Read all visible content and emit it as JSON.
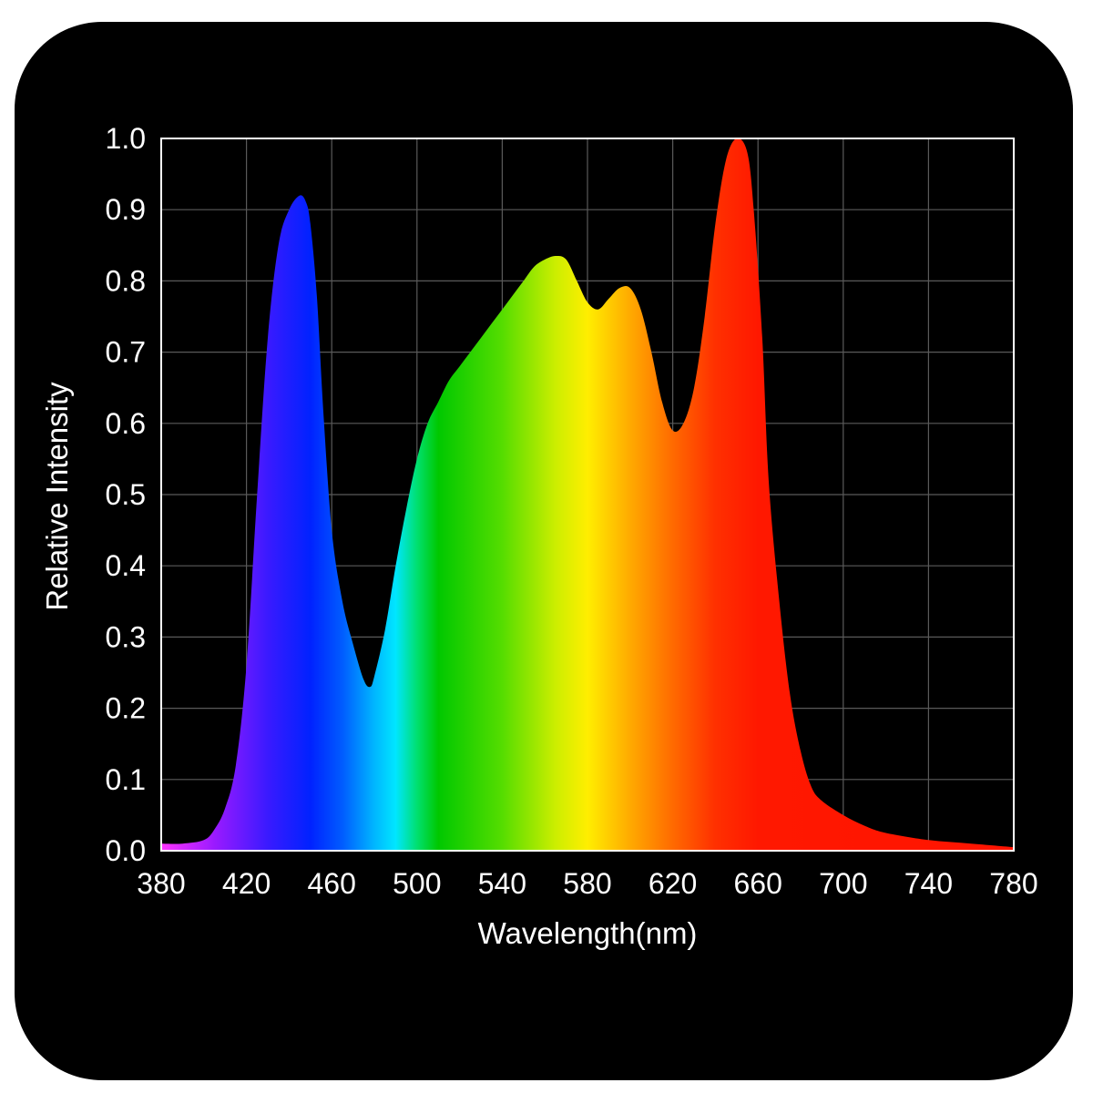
{
  "chart_data": {
    "type": "area",
    "title": "",
    "xlabel": "Wavelength(nm)",
    "ylabel": "Relative Intensity",
    "xlim": [
      380,
      780
    ],
    "ylim": [
      0,
      1.0
    ],
    "x_ticks": [
      "380",
      "420",
      "460",
      "500",
      "540",
      "580",
      "620",
      "660",
      "700",
      "740",
      "780"
    ],
    "y_ticks": [
      "0.0",
      "0.1",
      "0.2",
      "0.3",
      "0.4",
      "0.5",
      "0.6",
      "0.7",
      "0.8",
      "0.9",
      "1.0"
    ],
    "grid": true,
    "legend": "none",
    "fill": "visible spectrum gradient",
    "series": [
      {
        "x": [
          380,
          390,
          400,
          405,
          410,
          415,
          420,
          425,
          430,
          435,
          440,
          445,
          448,
          450,
          453,
          456,
          460,
          465,
          470,
          475,
          478,
          480,
          485,
          490,
          495,
          500,
          505,
          510,
          515,
          520,
          525,
          530,
          535,
          540,
          545,
          550,
          555,
          560,
          565,
          570,
          575,
          580,
          585,
          590,
          595,
          600,
          605,
          610,
          615,
          620,
          625,
          630,
          635,
          640,
          645,
          650,
          655,
          658,
          662,
          665,
          670,
          675,
          680,
          685,
          690,
          700,
          710,
          720,
          740,
          760,
          780
        ],
        "y": [
          0.01,
          0.01,
          0.015,
          0.03,
          0.06,
          0.12,
          0.26,
          0.5,
          0.72,
          0.85,
          0.9,
          0.92,
          0.91,
          0.88,
          0.78,
          0.62,
          0.45,
          0.35,
          0.29,
          0.24,
          0.23,
          0.245,
          0.31,
          0.4,
          0.48,
          0.55,
          0.6,
          0.63,
          0.66,
          0.68,
          0.7,
          0.72,
          0.74,
          0.76,
          0.78,
          0.8,
          0.82,
          0.83,
          0.835,
          0.83,
          0.8,
          0.77,
          0.76,
          0.775,
          0.79,
          0.79,
          0.76,
          0.7,
          0.63,
          0.59,
          0.6,
          0.65,
          0.75,
          0.88,
          0.97,
          1.0,
          0.98,
          0.9,
          0.72,
          0.52,
          0.35,
          0.22,
          0.14,
          0.09,
          0.07,
          0.05,
          0.035,
          0.025,
          0.015,
          0.01,
          0.005
        ]
      }
    ],
    "gradient_stops": [
      {
        "nm": 380,
        "color": "#ff33ff"
      },
      {
        "nm": 405,
        "color": "#9a1aff"
      },
      {
        "nm": 430,
        "color": "#3a1aff"
      },
      {
        "nm": 450,
        "color": "#0022ff"
      },
      {
        "nm": 465,
        "color": "#005cff"
      },
      {
        "nm": 480,
        "color": "#00b6ff"
      },
      {
        "nm": 490,
        "color": "#00e6ff"
      },
      {
        "nm": 500,
        "color": "#00e070"
      },
      {
        "nm": 510,
        "color": "#00c800"
      },
      {
        "nm": 540,
        "color": "#55dd00"
      },
      {
        "nm": 565,
        "color": "#ccee00"
      },
      {
        "nm": 580,
        "color": "#ffee00"
      },
      {
        "nm": 600,
        "color": "#ffaa00"
      },
      {
        "nm": 620,
        "color": "#ff6a00"
      },
      {
        "nm": 640,
        "color": "#ff3000"
      },
      {
        "nm": 660,
        "color": "#ff1800"
      },
      {
        "nm": 780,
        "color": "#ff1400"
      }
    ],
    "colors": {
      "background": "#000000",
      "grid": "#5a5a5a",
      "frame": "#ffffff",
      "text": "#ffffff"
    }
  }
}
